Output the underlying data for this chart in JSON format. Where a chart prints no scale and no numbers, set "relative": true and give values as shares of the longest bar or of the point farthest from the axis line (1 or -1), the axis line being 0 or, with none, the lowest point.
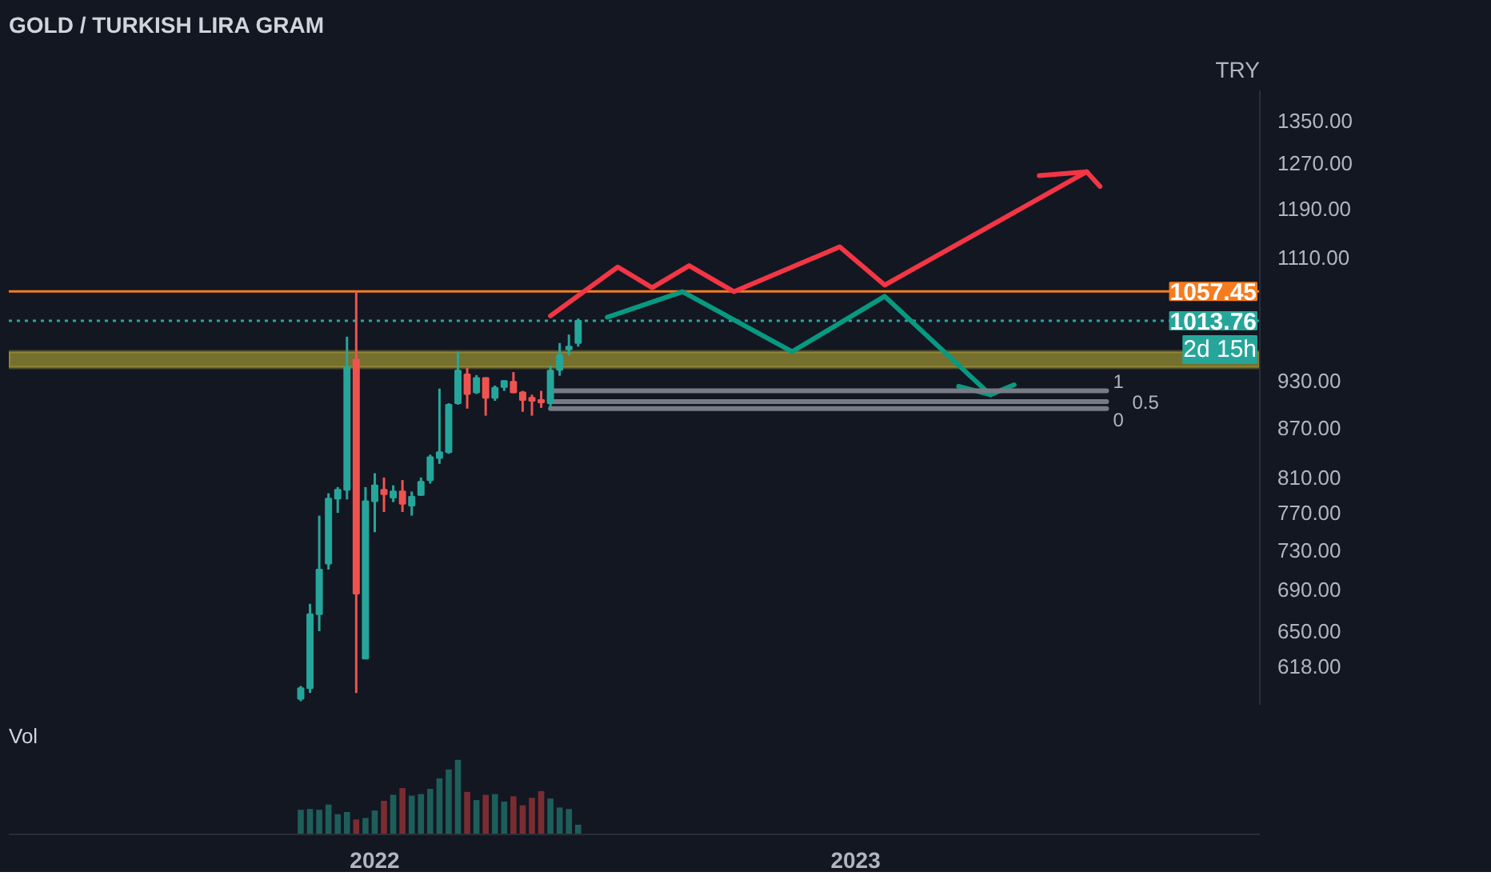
{
  "chart_data": [
    {
      "type": "candlestick",
      "title": "GOLD / TURKISH LIRA GRAM",
      "ylabel": "TRY",
      "log": "y",
      "grid": false,
      "tick_labels": "y",
      "x": [
        "2021-11-08",
        "2021-11-15",
        "2021-11-22",
        "2021-11-29",
        "2021-12-06",
        "2021-12-13",
        "2021-12-20",
        "2021-12-27",
        "2022-01-03",
        "2022-01-10",
        "2022-01-17",
        "2022-01-24",
        "2022-01-31",
        "2022-02-07",
        "2022-02-14",
        "2022-02-21",
        "2022-02-28",
        "2022-03-07",
        "2022-03-14",
        "2022-03-21",
        "2022-03-28",
        "2022-04-04",
        "2022-04-11",
        "2022-04-18",
        "2022-04-25",
        "2022-05-02",
        "2022-05-09",
        "2022-05-16",
        "2022-05-23",
        "2022-05-30",
        "2022-06-06"
      ],
      "ohlc": [
        [
          590,
          601,
          588,
          599
        ],
        [
          599,
          676,
          595,
          666
        ],
        [
          666,
          767,
          650,
          710
        ],
        [
          716,
          792,
          710,
          786
        ],
        [
          786,
          799,
          770,
          796
        ],
        [
          796,
          991,
          785,
          949
        ],
        [
          959,
          1057,
          595,
          686
        ],
        [
          625,
          799,
          625,
          783
        ],
        [
          783,
          815,
          749,
          801
        ],
        [
          796,
          810,
          771,
          791
        ],
        [
          787,
          801,
          782,
          794
        ],
        [
          794,
          807,
          771,
          780
        ],
        [
          778,
          794,
          767,
          788
        ],
        [
          790,
          810,
          789,
          805
        ],
        [
          807,
          837,
          803,
          834
        ],
        [
          833,
          920,
          826,
          840
        ],
        [
          840,
          901,
          838,
          899
        ],
        [
          901,
          970,
          899,
          944
        ],
        [
          939,
          948,
          894,
          913
        ],
        [
          915,
          938,
          913,
          934
        ],
        [
          934,
          935,
          885,
          908
        ],
        [
          908,
          924,
          904,
          921
        ],
        [
          922,
          931,
          917,
          930
        ],
        [
          929,
          942,
          914,
          915
        ],
        [
          915,
          917,
          890,
          905
        ],
        [
          908,
          912,
          885,
          904
        ],
        [
          905,
          917,
          895,
          902
        ],
        [
          901,
          951,
          895,
          944
        ],
        [
          945,
          982,
          937,
          965
        ],
        [
          973,
          994,
          965,
          977
        ],
        [
          982,
          1017,
          977,
          1013.76
        ]
      ],
      "colors": [
        "#26a69a",
        "#26a69a",
        "#26a69a",
        "#26a69a",
        "#26a69a",
        "#26a69a",
        "#ef5350",
        "#26a69a",
        "#26a69a",
        "#ef5350",
        "#26a69a",
        "#ef5350",
        "#26a69a",
        "#26a69a",
        "#26a69a",
        "#26a69a",
        "#26a69a",
        "#26a69a",
        "#ef5350",
        "#26a69a",
        "#ef5350",
        "#26a69a",
        "#26a69a",
        "#ef5350",
        "#ef5350",
        "#ef5350",
        "#ef5350",
        "#26a69a",
        "#26a69a",
        "#26a69a",
        "#26a69a"
      ],
      "series": [
        {
          "type": "line",
          "color": "#f23645",
          "x": [
            "2022-05-16",
            "2022-07-06",
            "2022-08-01",
            "2022-08-29",
            "2022-10-02",
            "2022-12-21",
            "2023-01-24",
            "2023-06-26"
          ],
          "values": [
            1021,
            1095,
            1063,
            1097,
            1057,
            1127,
            1067,
            1255
          ]
        },
        {
          "type": "line",
          "color": "#f23645",
          "x": [
            "2023-05-21",
            "2023-06-26",
            "2023-07-06"
          ],
          "values": [
            1248,
            1255,
            1229
          ]
        },
        {
          "type": "line",
          "color": "#089981",
          "x": [
            "2022-06-28",
            "2022-08-24",
            "2022-11-15",
            "2023-01-24",
            "2023-04-14",
            "2023-05-02"
          ],
          "values": [
            1019,
            1057,
            970,
            1050,
            912,
            925
          ]
        },
        {
          "type": "line",
          "color": "#089981",
          "x": [
            "2023-03-21",
            "2023-04-14"
          ],
          "values": [
            923,
            912
          ]
        },
        {
          "type": "line",
          "color": "#787b86",
          "x": [
            "2022-05-16",
            "2023-07-11"
          ],
          "values": [
            917,
            917
          ]
        },
        {
          "type": "line",
          "color": "#787b86",
          "x": [
            "2022-05-16",
            "2023-07-11"
          ],
          "values": [
            903,
            903
          ]
        },
        {
          "type": "line",
          "color": "#787b86",
          "x": [
            "2022-05-16",
            "2023-07-11"
          ],
          "values": [
            894,
            894
          ]
        }
      ],
      "ref_lines": [
        {
          "axis": "y",
          "value": 1057.45,
          "label": "1057.45",
          "color": "#f57c1f",
          "line_style": "solid"
        },
        {
          "axis": "y",
          "value": 1013.76,
          "label": "1013.76",
          "color": "#26a69a",
          "line_style": "dotted"
        }
      ],
      "bands": [
        {
          "axis": "y",
          "from": 948,
          "to": 970,
          "color": "#c9b93a"
        }
      ],
      "annotations": [
        {
          "text": "1",
          "x": "2023-07-11",
          "y": 917
        },
        {
          "text": "0.5",
          "x": "2023-07-11",
          "y": 903
        },
        {
          "text": "0",
          "x": "2023-07-11",
          "y": 894
        },
        "2d 15h"
      ],
      "xlim": [
        "2021-04-01",
        "2023-11-04"
      ],
      "ylim": [
        585,
        1410
      ],
      "yticks": [
        {
          "value": 618,
          "label": "618.00"
        },
        {
          "value": 650,
          "label": "650.00"
        },
        {
          "value": 690,
          "label": "690.00"
        },
        {
          "value": 730,
          "label": "730.00"
        },
        {
          "value": 770,
          "label": "770.00"
        },
        {
          "value": 810,
          "label": "810.00"
        },
        {
          "value": 870,
          "label": "870.00"
        },
        {
          "value": 930,
          "label": "930.00"
        },
        {
          "value": 1110,
          "label": "1110.00"
        },
        {
          "value": 1190,
          "label": "1190.00"
        },
        {
          "value": 1270,
          "label": "1270.00"
        },
        {
          "value": 1350,
          "label": "1350.00"
        }
      ]
    },
    {
      "type": "bar",
      "title": "Vol",
      "relative": true,
      "grid": false,
      "x": [
        "2021-11-08",
        "2021-11-15",
        "2021-11-22",
        "2021-11-29",
        "2021-12-06",
        "2021-12-13",
        "2021-12-20",
        "2021-12-27",
        "2022-01-03",
        "2022-01-10",
        "2022-01-17",
        "2022-01-24",
        "2022-01-31",
        "2022-02-07",
        "2022-02-14",
        "2022-02-21",
        "2022-02-28",
        "2022-03-07",
        "2022-03-14",
        "2022-03-21",
        "2022-03-28",
        "2022-04-04",
        "2022-04-11",
        "2022-04-18",
        "2022-04-25",
        "2022-05-02",
        "2022-05-09",
        "2022-05-16",
        "2022-05-23",
        "2022-05-30",
        "2022-06-06"
      ],
      "values": [
        0.33,
        0.34,
        0.33,
        0.4,
        0.27,
        0.3,
        0.2,
        0.22,
        0.32,
        0.45,
        0.53,
        0.62,
        0.52,
        0.54,
        0.61,
        0.75,
        0.87,
        1,
        0.57,
        0.46,
        0.53,
        0.54,
        0.44,
        0.51,
        0.39,
        0.49,
        0.58,
        0.48,
        0.36,
        0.34,
        0.13
      ],
      "colors": [
        "#1e5e5a",
        "#1e5e5a",
        "#1e5e5a",
        "#1e5e5a",
        "#1e5e5a",
        "#1e5e5a",
        "#7a2d31",
        "#1e5e5a",
        "#1e5e5a",
        "#7a2d31",
        "#1e5e5a",
        "#7a2d31",
        "#1e5e5a",
        "#1e5e5a",
        "#1e5e5a",
        "#1e5e5a",
        "#1e5e5a",
        "#1e5e5a",
        "#7a2d31",
        "#1e5e5a",
        "#7a2d31",
        "#1e5e5a",
        "#1e5e5a",
        "#7a2d31",
        "#7a2d31",
        "#7a2d31",
        "#7a2d31",
        "#1e5e5a",
        "#1e5e5a",
        "#1e5e5a",
        "#1e5e5a"
      ],
      "xlim": [
        "2021-04-01",
        "2023-11-04"
      ],
      "xticks": [
        {
          "value": "2022-01-03",
          "label": "2022"
        },
        {
          "value": "2023-01-02",
          "label": "2023"
        }
      ]
    }
  ]
}
